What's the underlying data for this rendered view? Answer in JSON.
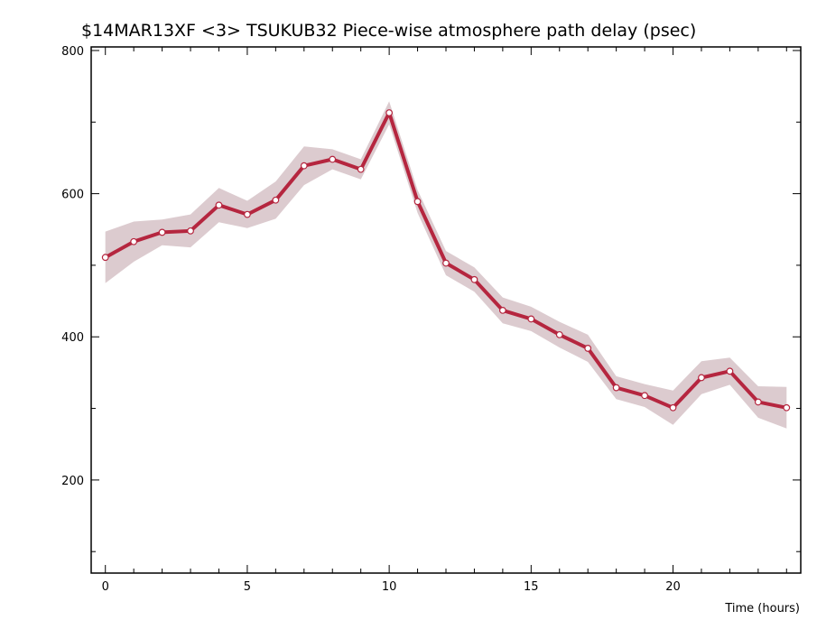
{
  "chart_data": {
    "type": "line",
    "title": "$14MAR13XF <3>  TSUKUB32  Piece-wise atmosphere path delay (psec)",
    "xlabel": "Time (hours)",
    "ylabel": "",
    "xlim": [
      -0.5,
      24.5
    ],
    "ylim": [
      70,
      805
    ],
    "x_major_ticks": [
      0,
      5,
      10,
      15,
      20
    ],
    "x_tick_labels": [
      "0",
      "5",
      "10",
      "15",
      "20"
    ],
    "y_major_ticks": [
      200,
      400,
      600,
      800
    ],
    "y_tick_labels": [
      "200",
      "400",
      "600",
      "800"
    ],
    "grid": false,
    "legend": "none",
    "line_color": "#b5263f",
    "band_color": "#dccbcf",
    "x": [
      0,
      1,
      2,
      3,
      4,
      5,
      6,
      7,
      8,
      9,
      10,
      11,
      12,
      13,
      14,
      15,
      16,
      17,
      18,
      19,
      20,
      21,
      22,
      23,
      24
    ],
    "series": [
      {
        "values": [
          511,
          533,
          546,
          548,
          584,
          571,
          591,
          639,
          648,
          634,
          713,
          589,
          503,
          480,
          437,
          425,
          403,
          384,
          329,
          318,
          301,
          343,
          352,
          309,
          301
        ],
        "lower": [
          475,
          505,
          528,
          525,
          560,
          552,
          565,
          612,
          634,
          620,
          697,
          573,
          486,
          463,
          419,
          408,
          385,
          365,
          313,
          302,
          277,
          320,
          333,
          287,
          272
        ],
        "upper": [
          547,
          561,
          564,
          571,
          608,
          590,
          617,
          666,
          662,
          648,
          729,
          605,
          520,
          497,
          455,
          442,
          421,
          403,
          345,
          334,
          325,
          366,
          371,
          331,
          330
        ]
      }
    ]
  }
}
